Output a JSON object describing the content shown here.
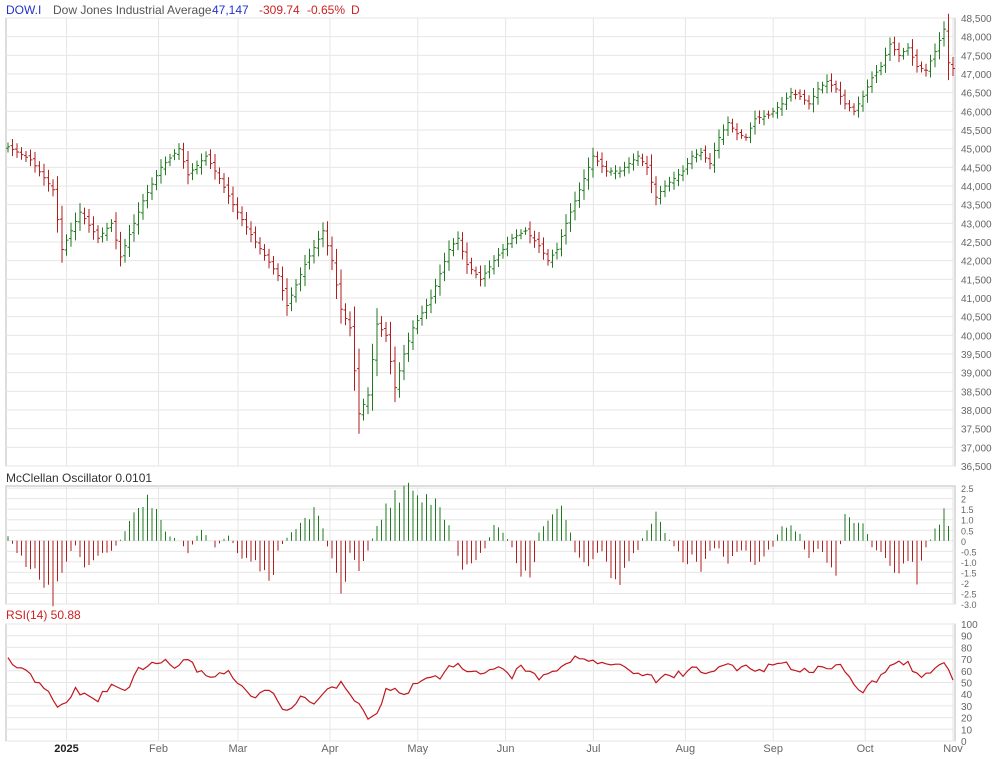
{
  "header": {
    "symbol": "DOW.I",
    "name": "Dow Jones Industrial Average",
    "last": "47,147",
    "change": "-309.74",
    "change_pct": "-0.65%",
    "interval": "D"
  },
  "mcclellan": {
    "label": "McClellan Oscillator 0.0101"
  },
  "rsi": {
    "label": "RSI(14) 50.88"
  },
  "colors": {
    "up": "#1f7a1f",
    "down": "#b01e1e",
    "symbol": "#2233cc",
    "last": "#2233cc",
    "change": "#cc2222",
    "rsi_line": "#c0181e",
    "grid": "#e6e6e6",
    "axis_text": "#666666"
  },
  "chart_data": [
    {
      "type": "ohlc",
      "title": "Dow Jones Industrial Average",
      "ylim": [
        36500,
        48500
      ],
      "y_ticks": [
        "36,500",
        "37,000",
        "37,500",
        "38,000",
        "38,500",
        "39,000",
        "39,500",
        "40,000",
        "40,500",
        "41,000",
        "41,500",
        "42,000",
        "42,500",
        "43,000",
        "43,500",
        "44,000",
        "44,500",
        "45,000",
        "45,500",
        "46,000",
        "46,500",
        "47,000",
        "47,500",
        "48,000",
        "48,500"
      ],
      "x_ticks": [
        "2025",
        "Feb",
        "Mar",
        "Apr",
        "May",
        "Jun",
        "Jul",
        "Aug",
        "Sep",
        "Oct",
        "Nov"
      ],
      "anchors": [
        [
          0,
          45050
        ],
        [
          5,
          44700
        ],
        [
          10,
          43900
        ],
        [
          12,
          42300
        ],
        [
          16,
          43300
        ],
        [
          20,
          42600
        ],
        [
          23,
          43000
        ],
        [
          25,
          42100
        ],
        [
          30,
          43600
        ],
        [
          34,
          44500
        ],
        [
          38,
          45000
        ],
        [
          40,
          44300
        ],
        [
          44,
          44800
        ],
        [
          47,
          44200
        ],
        [
          50,
          43500
        ],
        [
          55,
          42500
        ],
        [
          60,
          41600
        ],
        [
          62,
          40800
        ],
        [
          66,
          41900
        ],
        [
          70,
          42800
        ],
        [
          72,
          42000
        ],
        [
          74,
          40700
        ],
        [
          76,
          40200
        ],
        [
          78,
          37900
        ],
        [
          80,
          38400
        ],
        [
          82,
          40300
        ],
        [
          84,
          40000
        ],
        [
          86,
          38600
        ],
        [
          88,
          39500
        ],
        [
          90,
          40200
        ],
        [
          94,
          41000
        ],
        [
          98,
          42300
        ],
        [
          100,
          42600
        ],
        [
          102,
          41900
        ],
        [
          105,
          41500
        ],
        [
          108,
          42000
        ],
        [
          112,
          42600
        ],
        [
          115,
          42800
        ],
        [
          118,
          42400
        ],
        [
          120,
          42000
        ],
        [
          122,
          42300
        ],
        [
          124,
          43000
        ],
        [
          128,
          44200
        ],
        [
          130,
          44800
        ],
        [
          133,
          44400
        ],
        [
          136,
          44400
        ],
        [
          140,
          44800
        ],
        [
          142,
          44500
        ],
        [
          144,
          43700
        ],
        [
          146,
          44000
        ],
        [
          148,
          44200
        ],
        [
          150,
          44400
        ],
        [
          152,
          44800
        ],
        [
          154,
          44900
        ],
        [
          156,
          44600
        ],
        [
          158,
          45300
        ],
        [
          160,
          45700
        ],
        [
          162,
          45400
        ],
        [
          164,
          45300
        ],
        [
          166,
          45800
        ],
        [
          169,
          45900
        ],
        [
          172,
          46200
        ],
        [
          174,
          46500
        ],
        [
          176,
          46400
        ],
        [
          178,
          46200
        ],
        [
          180,
          46600
        ],
        [
          182,
          46800
        ],
        [
          184,
          46600
        ],
        [
          186,
          46200
        ],
        [
          188,
          46000
        ],
        [
          190,
          46400
        ],
        [
          192,
          46900
        ],
        [
          194,
          47200
        ],
        [
          196,
          47800
        ],
        [
          198,
          47500
        ],
        [
          200,
          47700
        ],
        [
          202,
          47200
        ],
        [
          204,
          47100
        ],
        [
          206,
          47600
        ],
        [
          208,
          48200
        ],
        [
          209,
          47300
        ],
        [
          210,
          47147
        ]
      ]
    },
    {
      "type": "bar",
      "title": "McClellan Oscillator 0.0101",
      "ylim": [
        -3.0,
        2.6
      ],
      "y_ticks": [
        "2.5",
        "2",
        "1.5",
        "1.0",
        "0.5",
        "0",
        "-0.5",
        "-1.0",
        "-1.5",
        "-2",
        "-2.5",
        "-3.0"
      ],
      "anchors": [
        [
          0,
          0.2
        ],
        [
          4,
          -1.2
        ],
        [
          8,
          -2.2
        ],
        [
          10,
          -3.0
        ],
        [
          12,
          -1.5
        ],
        [
          15,
          -0.2
        ],
        [
          18,
          -1.5
        ],
        [
          20,
          -0.7
        ],
        [
          24,
          -0.3
        ],
        [
          26,
          0.4
        ],
        [
          29,
          2.0
        ],
        [
          31,
          2.2
        ],
        [
          33,
          1.6
        ],
        [
          35,
          0.4
        ],
        [
          38,
          0
        ],
        [
          40,
          -0.6
        ],
        [
          43,
          0.6
        ],
        [
          46,
          -0.3
        ],
        [
          49,
          0.3
        ],
        [
          52,
          -1.0
        ],
        [
          55,
          -0.8
        ],
        [
          58,
          -2.3
        ],
        [
          60,
          -0.4
        ],
        [
          63,
          0.4
        ],
        [
          66,
          1.0
        ],
        [
          68,
          1.5
        ],
        [
          70,
          0.5
        ],
        [
          72,
          -1.0
        ],
        [
          74,
          -2.6
        ],
        [
          76,
          -0.6
        ],
        [
          78,
          -1.2
        ],
        [
          80,
          -0.4
        ],
        [
          82,
          0.6
        ],
        [
          84,
          1.6
        ],
        [
          86,
          2.2
        ],
        [
          88,
          2.6
        ],
        [
          90,
          2.0
        ],
        [
          92,
          1.7
        ],
        [
          94,
          2.2
        ],
        [
          96,
          1.5
        ],
        [
          98,
          0.8
        ],
        [
          100,
          -0.8
        ],
        [
          102,
          -1.4
        ],
        [
          104,
          -0.8
        ],
        [
          106,
          -0.4
        ],
        [
          108,
          0.8
        ],
        [
          110,
          0.5
        ],
        [
          112,
          -0.3
        ],
        [
          114,
          -1.5
        ],
        [
          116,
          -2.2
        ],
        [
          118,
          0.4
        ],
        [
          120,
          1.2
        ],
        [
          122,
          2.0
        ],
        [
          124,
          1.2
        ],
        [
          126,
          -0.5
        ],
        [
          128,
          -1.3
        ],
        [
          130,
          -0.9
        ],
        [
          132,
          -0.6
        ],
        [
          134,
          -1.5
        ],
        [
          136,
          -2.4
        ],
        [
          138,
          -0.8
        ],
        [
          140,
          -0.4
        ],
        [
          142,
          0.6
        ],
        [
          144,
          1.2
        ],
        [
          146,
          0.4
        ],
        [
          148,
          -0.3
        ],
        [
          150,
          -1.0
        ],
        [
          152,
          -0.8
        ],
        [
          154,
          -1.2
        ],
        [
          156,
          -0.6
        ],
        [
          158,
          -0.3
        ],
        [
          160,
          -1.1
        ],
        [
          162,
          -0.5
        ],
        [
          164,
          -0.4
        ],
        [
          166,
          -1.3
        ],
        [
          168,
          -0.6
        ],
        [
          170,
          -0.3
        ],
        [
          172,
          0.8
        ],
        [
          174,
          0.6
        ],
        [
          176,
          0.3
        ],
        [
          178,
          -1.0
        ],
        [
          180,
          -0.4
        ],
        [
          182,
          -0.9
        ],
        [
          184,
          -1.6
        ],
        [
          186,
          1.3
        ],
        [
          188,
          0.7
        ],
        [
          190,
          1.1
        ],
        [
          192,
          -0.3
        ],
        [
          194,
          -0.6
        ],
        [
          196,
          -1.2
        ],
        [
          198,
          -1.4
        ],
        [
          200,
          -0.8
        ],
        [
          202,
          -1.7
        ],
        [
          204,
          -0.4
        ],
        [
          206,
          0.5
        ],
        [
          208,
          1.5
        ],
        [
          209,
          0.6
        ],
        [
          210,
          0.01
        ]
      ]
    },
    {
      "type": "line",
      "title": "RSI(14) 50.88",
      "ylim": [
        0,
        100
      ],
      "y_ticks": [
        "100",
        "90",
        "80",
        "70",
        "60",
        "50",
        "40",
        "30",
        "20",
        "10",
        "0"
      ],
      "anchors": [
        [
          0,
          69
        ],
        [
          3,
          61
        ],
        [
          6,
          52
        ],
        [
          9,
          40
        ],
        [
          11,
          28
        ],
        [
          13,
          33
        ],
        [
          15,
          45
        ],
        [
          17,
          38
        ],
        [
          20,
          36
        ],
        [
          23,
          47
        ],
        [
          26,
          43
        ],
        [
          29,
          60
        ],
        [
          32,
          66
        ],
        [
          35,
          68
        ],
        [
          37,
          64
        ],
        [
          40,
          68
        ],
        [
          43,
          58
        ],
        [
          46,
          56
        ],
        [
          49,
          59
        ],
        [
          51,
          52
        ],
        [
          53,
          40
        ],
        [
          55,
          38
        ],
        [
          58,
          44
        ],
        [
          60,
          32
        ],
        [
          62,
          27
        ],
        [
          64,
          33
        ],
        [
          66,
          38
        ],
        [
          68,
          32
        ],
        [
          70,
          42
        ],
        [
          72,
          45
        ],
        [
          74,
          48
        ],
        [
          76,
          40
        ],
        [
          78,
          33
        ],
        [
          80,
          20
        ],
        [
          82,
          23
        ],
        [
          84,
          42
        ],
        [
          86,
          45
        ],
        [
          88,
          38
        ],
        [
          90,
          48
        ],
        [
          92,
          52
        ],
        [
          94,
          55
        ],
        [
          96,
          53
        ],
        [
          98,
          62
        ],
        [
          100,
          64
        ],
        [
          102,
          57
        ],
        [
          104,
          62
        ],
        [
          106,
          56
        ],
        [
          108,
          61
        ],
        [
          110,
          60
        ],
        [
          112,
          56
        ],
        [
          114,
          62
        ],
        [
          116,
          59
        ],
        [
          118,
          55
        ],
        [
          120,
          60
        ],
        [
          122,
          62
        ],
        [
          124,
          68
        ],
        [
          126,
          71
        ],
        [
          128,
          72
        ],
        [
          130,
          68
        ],
        [
          132,
          66
        ],
        [
          134,
          68
        ],
        [
          136,
          63
        ],
        [
          138,
          60
        ],
        [
          140,
          58
        ],
        [
          142,
          55
        ],
        [
          144,
          52
        ],
        [
          146,
          55
        ],
        [
          148,
          56
        ],
        [
          150,
          58
        ],
        [
          152,
          62
        ],
        [
          154,
          61
        ],
        [
          156,
          57
        ],
        [
          158,
          63
        ],
        [
          160,
          66
        ],
        [
          162,
          62
        ],
        [
          164,
          64
        ],
        [
          166,
          60
        ],
        [
          168,
          62
        ],
        [
          170,
          64
        ],
        [
          172,
          66
        ],
        [
          174,
          63
        ],
        [
          176,
          62
        ],
        [
          178,
          60
        ],
        [
          180,
          62
        ],
        [
          182,
          64
        ],
        [
          184,
          65
        ],
        [
          186,
          62
        ],
        [
          188,
          50
        ],
        [
          189,
          42
        ],
        [
          190,
          40
        ],
        [
          192,
          51
        ],
        [
          194,
          55
        ],
        [
          196,
          64
        ],
        [
          198,
          68
        ],
        [
          200,
          66
        ],
        [
          202,
          59
        ],
        [
          204,
          55
        ],
        [
          206,
          62
        ],
        [
          208,
          68
        ],
        [
          209,
          60
        ],
        [
          210,
          50.88
        ]
      ]
    }
  ]
}
